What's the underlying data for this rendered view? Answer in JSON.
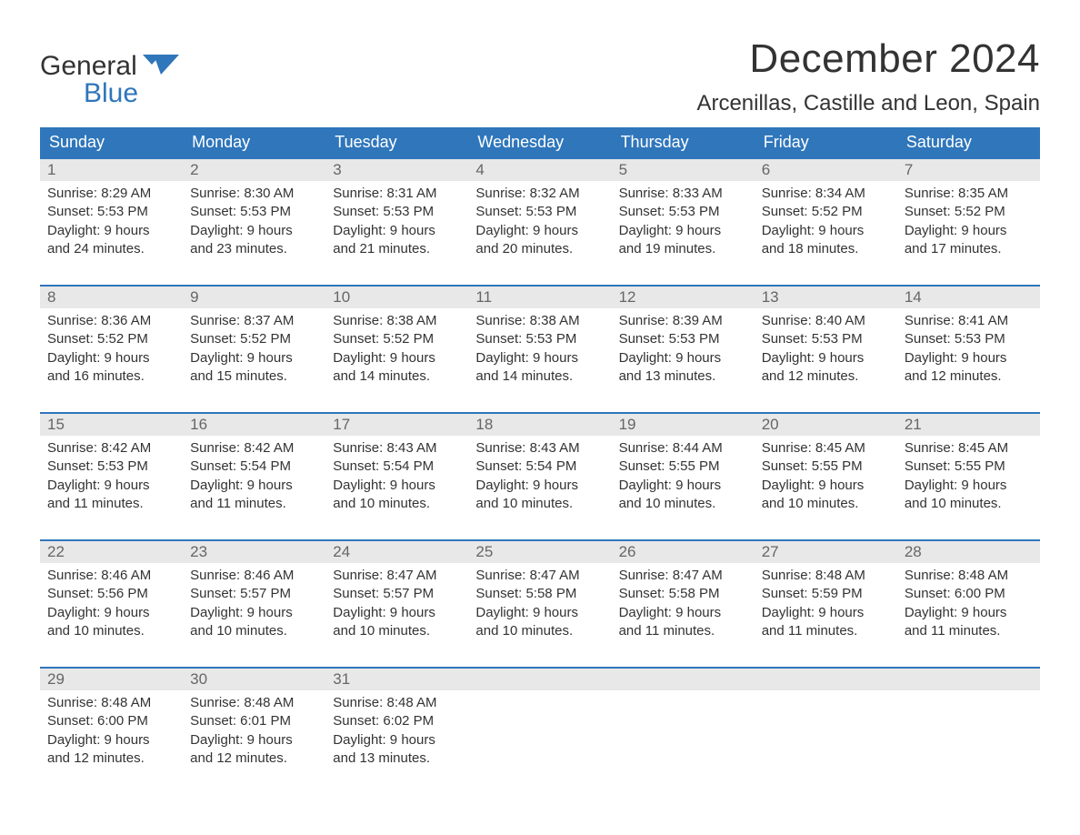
{
  "logo": {
    "word1": "General",
    "word2": "Blue"
  },
  "title": "December 2024",
  "location": "Arcenillas, Castille and Leon, Spain",
  "colors": {
    "brand_blue": "#2f76bb",
    "header_text": "#333333",
    "daynum_bg": "#e8e8e8",
    "daynum_text": "#666666",
    "body_text": "#333333",
    "background": "#ffffff"
  },
  "typography": {
    "title_fontsize": 44,
    "location_fontsize": 24,
    "weekday_fontsize": 18,
    "daynum_fontsize": 17,
    "body_fontsize": 15,
    "logo_fontsize": 30
  },
  "weekdays": [
    "Sunday",
    "Monday",
    "Tuesday",
    "Wednesday",
    "Thursday",
    "Friday",
    "Saturday"
  ],
  "weeks": [
    [
      {
        "num": "1",
        "sunrise": "Sunrise: 8:29 AM",
        "sunset": "Sunset: 5:53 PM",
        "day1": "Daylight: 9 hours",
        "day2": "and 24 minutes."
      },
      {
        "num": "2",
        "sunrise": "Sunrise: 8:30 AM",
        "sunset": "Sunset: 5:53 PM",
        "day1": "Daylight: 9 hours",
        "day2": "and 23 minutes."
      },
      {
        "num": "3",
        "sunrise": "Sunrise: 8:31 AM",
        "sunset": "Sunset: 5:53 PM",
        "day1": "Daylight: 9 hours",
        "day2": "and 21 minutes."
      },
      {
        "num": "4",
        "sunrise": "Sunrise: 8:32 AM",
        "sunset": "Sunset: 5:53 PM",
        "day1": "Daylight: 9 hours",
        "day2": "and 20 minutes."
      },
      {
        "num": "5",
        "sunrise": "Sunrise: 8:33 AM",
        "sunset": "Sunset: 5:53 PM",
        "day1": "Daylight: 9 hours",
        "day2": "and 19 minutes."
      },
      {
        "num": "6",
        "sunrise": "Sunrise: 8:34 AM",
        "sunset": "Sunset: 5:52 PM",
        "day1": "Daylight: 9 hours",
        "day2": "and 18 minutes."
      },
      {
        "num": "7",
        "sunrise": "Sunrise: 8:35 AM",
        "sunset": "Sunset: 5:52 PM",
        "day1": "Daylight: 9 hours",
        "day2": "and 17 minutes."
      }
    ],
    [
      {
        "num": "8",
        "sunrise": "Sunrise: 8:36 AM",
        "sunset": "Sunset: 5:52 PM",
        "day1": "Daylight: 9 hours",
        "day2": "and 16 minutes."
      },
      {
        "num": "9",
        "sunrise": "Sunrise: 8:37 AM",
        "sunset": "Sunset: 5:52 PM",
        "day1": "Daylight: 9 hours",
        "day2": "and 15 minutes."
      },
      {
        "num": "10",
        "sunrise": "Sunrise: 8:38 AM",
        "sunset": "Sunset: 5:52 PM",
        "day1": "Daylight: 9 hours",
        "day2": "and 14 minutes."
      },
      {
        "num": "11",
        "sunrise": "Sunrise: 8:38 AM",
        "sunset": "Sunset: 5:53 PM",
        "day1": "Daylight: 9 hours",
        "day2": "and 14 minutes."
      },
      {
        "num": "12",
        "sunrise": "Sunrise: 8:39 AM",
        "sunset": "Sunset: 5:53 PM",
        "day1": "Daylight: 9 hours",
        "day2": "and 13 minutes."
      },
      {
        "num": "13",
        "sunrise": "Sunrise: 8:40 AM",
        "sunset": "Sunset: 5:53 PM",
        "day1": "Daylight: 9 hours",
        "day2": "and 12 minutes."
      },
      {
        "num": "14",
        "sunrise": "Sunrise: 8:41 AM",
        "sunset": "Sunset: 5:53 PM",
        "day1": "Daylight: 9 hours",
        "day2": "and 12 minutes."
      }
    ],
    [
      {
        "num": "15",
        "sunrise": "Sunrise: 8:42 AM",
        "sunset": "Sunset: 5:53 PM",
        "day1": "Daylight: 9 hours",
        "day2": "and 11 minutes."
      },
      {
        "num": "16",
        "sunrise": "Sunrise: 8:42 AM",
        "sunset": "Sunset: 5:54 PM",
        "day1": "Daylight: 9 hours",
        "day2": "and 11 minutes."
      },
      {
        "num": "17",
        "sunrise": "Sunrise: 8:43 AM",
        "sunset": "Sunset: 5:54 PM",
        "day1": "Daylight: 9 hours",
        "day2": "and 10 minutes."
      },
      {
        "num": "18",
        "sunrise": "Sunrise: 8:43 AM",
        "sunset": "Sunset: 5:54 PM",
        "day1": "Daylight: 9 hours",
        "day2": "and 10 minutes."
      },
      {
        "num": "19",
        "sunrise": "Sunrise: 8:44 AM",
        "sunset": "Sunset: 5:55 PM",
        "day1": "Daylight: 9 hours",
        "day2": "and 10 minutes."
      },
      {
        "num": "20",
        "sunrise": "Sunrise: 8:45 AM",
        "sunset": "Sunset: 5:55 PM",
        "day1": "Daylight: 9 hours",
        "day2": "and 10 minutes."
      },
      {
        "num": "21",
        "sunrise": "Sunrise: 8:45 AM",
        "sunset": "Sunset: 5:55 PM",
        "day1": "Daylight: 9 hours",
        "day2": "and 10 minutes."
      }
    ],
    [
      {
        "num": "22",
        "sunrise": "Sunrise: 8:46 AM",
        "sunset": "Sunset: 5:56 PM",
        "day1": "Daylight: 9 hours",
        "day2": "and 10 minutes."
      },
      {
        "num": "23",
        "sunrise": "Sunrise: 8:46 AM",
        "sunset": "Sunset: 5:57 PM",
        "day1": "Daylight: 9 hours",
        "day2": "and 10 minutes."
      },
      {
        "num": "24",
        "sunrise": "Sunrise: 8:47 AM",
        "sunset": "Sunset: 5:57 PM",
        "day1": "Daylight: 9 hours",
        "day2": "and 10 minutes."
      },
      {
        "num": "25",
        "sunrise": "Sunrise: 8:47 AM",
        "sunset": "Sunset: 5:58 PM",
        "day1": "Daylight: 9 hours",
        "day2": "and 10 minutes."
      },
      {
        "num": "26",
        "sunrise": "Sunrise: 8:47 AM",
        "sunset": "Sunset: 5:58 PM",
        "day1": "Daylight: 9 hours",
        "day2": "and 11 minutes."
      },
      {
        "num": "27",
        "sunrise": "Sunrise: 8:48 AM",
        "sunset": "Sunset: 5:59 PM",
        "day1": "Daylight: 9 hours",
        "day2": "and 11 minutes."
      },
      {
        "num": "28",
        "sunrise": "Sunrise: 8:48 AM",
        "sunset": "Sunset: 6:00 PM",
        "day1": "Daylight: 9 hours",
        "day2": "and 11 minutes."
      }
    ],
    [
      {
        "num": "29",
        "sunrise": "Sunrise: 8:48 AM",
        "sunset": "Sunset: 6:00 PM",
        "day1": "Daylight: 9 hours",
        "day2": "and 12 minutes."
      },
      {
        "num": "30",
        "sunrise": "Sunrise: 8:48 AM",
        "sunset": "Sunset: 6:01 PM",
        "day1": "Daylight: 9 hours",
        "day2": "and 12 minutes."
      },
      {
        "num": "31",
        "sunrise": "Sunrise: 8:48 AM",
        "sunset": "Sunset: 6:02 PM",
        "day1": "Daylight: 9 hours",
        "day2": "and 13 minutes."
      },
      {
        "empty": true
      },
      {
        "empty": true
      },
      {
        "empty": true
      },
      {
        "empty": true
      }
    ]
  ]
}
